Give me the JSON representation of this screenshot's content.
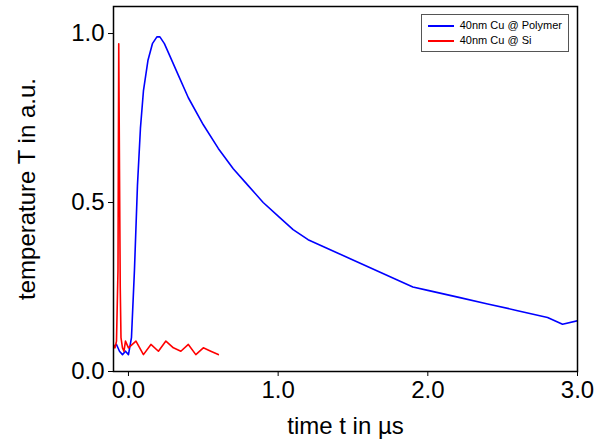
{
  "chart_data": {
    "type": "line",
    "x_label": "time t in µs",
    "y_label": "temperature T in a.u.",
    "xlim": [
      -0.1,
      3.0
    ],
    "xticks": [
      {
        "value": 0,
        "label": "0.0"
      },
      {
        "value": 1,
        "label": "1.0"
      },
      {
        "value": 2,
        "label": "2.0"
      },
      {
        "value": 3,
        "label": "3.0"
      }
    ],
    "ylim": [
      0,
      1.08
    ],
    "yticks": [
      {
        "value": 0,
        "label": "0.0"
      },
      {
        "value": 0.5,
        "label": "0.5"
      },
      {
        "value": 1,
        "label": "1.0"
      }
    ],
    "grid": false,
    "legend": "top-right",
    "series": [
      {
        "name": "40nm Cu @ Polymer",
        "color": "#0000ff",
        "x": [
          -0.1,
          -0.08,
          -0.06,
          -0.04,
          -0.02,
          0,
          0.02,
          0.04,
          0.06,
          0.08,
          0.1,
          0.13,
          0.16,
          0.19,
          0.21,
          0.24,
          0.28,
          0.33,
          0.4,
          0.5,
          0.6,
          0.7,
          0.8,
          0.9,
          1.0,
          1.1,
          1.2,
          1.3,
          1.4,
          1.5,
          1.6,
          1.7,
          1.8,
          1.9,
          2.0,
          2.2,
          2.4,
          2.6,
          2.8,
          2.9,
          3.0
        ],
        "values": [
          0.07,
          0.08,
          0.06,
          0.05,
          0.06,
          0.05,
          0.1,
          0.3,
          0.55,
          0.72,
          0.83,
          0.92,
          0.97,
          0.99,
          0.99,
          0.97,
          0.93,
          0.88,
          0.81,
          0.73,
          0.66,
          0.6,
          0.55,
          0.5,
          0.46,
          0.42,
          0.39,
          0.37,
          0.35,
          0.33,
          0.31,
          0.29,
          0.27,
          0.25,
          0.24,
          0.22,
          0.2,
          0.18,
          0.16,
          0.14,
          0.15
        ]
      },
      {
        "name": "40nm Cu @ Si",
        "color": "#ff0000",
        "x": [
          -0.1,
          -0.09,
          -0.08,
          -0.07,
          -0.065,
          -0.06,
          -0.055,
          -0.05,
          -0.04,
          -0.03,
          -0.02,
          0.0,
          0.05,
          0.1,
          0.15,
          0.2,
          0.25,
          0.3,
          0.35,
          0.4,
          0.45,
          0.5,
          0.55,
          0.6
        ],
        "values": [
          0.08,
          0.07,
          0.09,
          0.3,
          0.97,
          0.6,
          0.25,
          0.1,
          0.07,
          0.06,
          0.09,
          0.07,
          0.09,
          0.05,
          0.08,
          0.06,
          0.09,
          0.07,
          0.06,
          0.08,
          0.05,
          0.07,
          0.06,
          0.05
        ]
      }
    ]
  }
}
